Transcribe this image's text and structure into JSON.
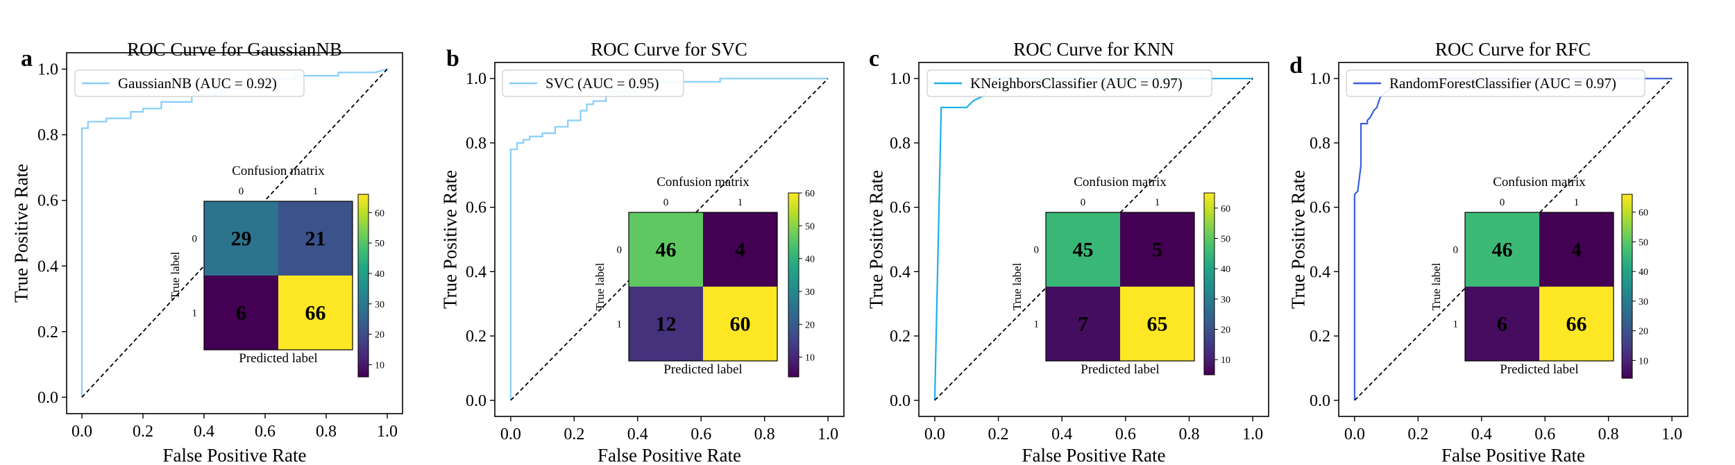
{
  "chart_data": [
    {
      "type": "line",
      "panel_letter": "a",
      "title": "ROC Curve for GaussianNB",
      "xlabel": "False Positive Rate",
      "ylabel": "True Positive Rate",
      "xlim": [
        -0.05,
        1.05
      ],
      "ylim": [
        -0.05,
        1.05
      ],
      "xticks": [
        "0.0",
        "0.2",
        "0.4",
        "0.6",
        "0.8",
        "1.0"
      ],
      "yticks": [
        "0.0",
        "0.2",
        "0.4",
        "0.6",
        "0.8",
        "1.0"
      ],
      "legend_loc": "upper left",
      "series": [
        {
          "name": "GaussianNB (AUC = 0.92)",
          "color": "#87cefa",
          "x": [
            0.0,
            0.0,
            0.02,
            0.02,
            0.08,
            0.08,
            0.16,
            0.16,
            0.2,
            0.2,
            0.26,
            0.26,
            0.36,
            0.36,
            0.46,
            0.46,
            0.56,
            0.56,
            0.6,
            0.6,
            0.7,
            0.7,
            0.84,
            0.84,
            0.96,
            1.0
          ],
          "y": [
            0.0,
            0.82,
            0.82,
            0.84,
            0.84,
            0.85,
            0.85,
            0.87,
            0.87,
            0.88,
            0.88,
            0.9,
            0.9,
            0.92,
            0.92,
            0.94,
            0.94,
            0.96,
            0.96,
            0.97,
            0.97,
            0.98,
            0.98,
            0.99,
            0.99,
            1.0
          ]
        },
        {
          "name": "",
          "style": "dashed",
          "color": "#000000",
          "x": [
            0,
            1
          ],
          "y": [
            0,
            1
          ]
        }
      ],
      "inset": {
        "title": "Confusion matrix",
        "xlabel": "Predicted label",
        "ylabel": "True label",
        "tick_labels": [
          "0",
          "1"
        ],
        "matrix": [
          [
            29,
            21
          ],
          [
            6,
            66
          ]
        ],
        "colorbar_ticks": [
          10,
          20,
          30,
          40,
          50,
          60
        ],
        "colorbar_range": [
          6,
          66
        ]
      }
    },
    {
      "type": "line",
      "panel_letter": "b",
      "title": "ROC Curve for SVC",
      "xlabel": "False Positive Rate",
      "ylabel": "True Positive Rate",
      "xlim": [
        -0.05,
        1.05
      ],
      "ylim": [
        -0.05,
        1.05
      ],
      "xticks": [
        "0.0",
        "0.2",
        "0.4",
        "0.6",
        "0.8",
        "1.0"
      ],
      "yticks": [
        "0.0",
        "0.2",
        "0.4",
        "0.6",
        "0.8",
        "1.0"
      ],
      "legend_loc": "upper left",
      "series": [
        {
          "name": "SVC (AUC = 0.95)",
          "color": "#87cefa",
          "x": [
            0.0,
            0.0,
            0.02,
            0.02,
            0.04,
            0.04,
            0.06,
            0.06,
            0.1,
            0.1,
            0.14,
            0.14,
            0.18,
            0.18,
            0.22,
            0.22,
            0.24,
            0.24,
            0.26,
            0.26,
            0.3,
            0.3,
            0.4,
            0.4,
            0.66,
            0.66,
            1.0
          ],
          "y": [
            0.0,
            0.78,
            0.78,
            0.8,
            0.8,
            0.81,
            0.81,
            0.82,
            0.82,
            0.83,
            0.83,
            0.85,
            0.85,
            0.87,
            0.87,
            0.9,
            0.9,
            0.92,
            0.92,
            0.93,
            0.93,
            0.96,
            0.96,
            0.99,
            0.99,
            1.0,
            1.0
          ]
        },
        {
          "name": "",
          "style": "dashed",
          "color": "#000000",
          "x": [
            0,
            1
          ],
          "y": [
            0,
            1
          ]
        }
      ],
      "inset": {
        "title": "Confusion matrix",
        "xlabel": "Predicted label",
        "ylabel": "True label",
        "tick_labels": [
          "0",
          "1"
        ],
        "matrix": [
          [
            46,
            4
          ],
          [
            12,
            60
          ]
        ],
        "colorbar_ticks": [
          10,
          20,
          30,
          40,
          50,
          60
        ],
        "colorbar_range": [
          4,
          60
        ]
      }
    },
    {
      "type": "line",
      "panel_letter": "c",
      "title": "ROC Curve for KNN",
      "xlabel": "False Positive Rate",
      "ylabel": "True Positive Rate",
      "xlim": [
        -0.05,
        1.05
      ],
      "ylim": [
        -0.05,
        1.05
      ],
      "xticks": [
        "0.0",
        "0.2",
        "0.4",
        "0.6",
        "0.8",
        "1.0"
      ],
      "yticks": [
        "0.0",
        "0.2",
        "0.4",
        "0.6",
        "0.8",
        "1.0"
      ],
      "legend_loc": "upper left",
      "series": [
        {
          "name": "KNeighborsClassifier (AUC = 0.97)",
          "color": "#1ab0e8",
          "x": [
            0.0,
            0.02,
            0.02,
            0.1,
            0.12,
            0.16,
            0.16,
            1.0
          ],
          "y": [
            0.0,
            0.9,
            0.91,
            0.91,
            0.93,
            0.95,
            1.0,
            1.0
          ]
        },
        {
          "name": "",
          "style": "dashed",
          "color": "#000000",
          "x": [
            0,
            1
          ],
          "y": [
            0,
            1
          ]
        }
      ],
      "inset": {
        "title": "Confusion matrix",
        "xlabel": "Predicted label",
        "ylabel": "True label",
        "tick_labels": [
          "0",
          "1"
        ],
        "matrix": [
          [
            45,
            5
          ],
          [
            7,
            65
          ]
        ],
        "colorbar_ticks": [
          10,
          20,
          30,
          40,
          50,
          60
        ],
        "colorbar_range": [
          5,
          65
        ]
      }
    },
    {
      "type": "line",
      "panel_letter": "d",
      "title": "ROC Curve for RFC",
      "xlabel": "False Positive Rate",
      "ylabel": "True Positive Rate",
      "xlim": [
        -0.05,
        1.05
      ],
      "ylim": [
        -0.05,
        1.05
      ],
      "xticks": [
        "0.0",
        "0.2",
        "0.4",
        "0.6",
        "0.8",
        "1.0"
      ],
      "yticks": [
        "0.0",
        "0.2",
        "0.4",
        "0.6",
        "0.8",
        "1.0"
      ],
      "legend_loc": "upper left",
      "series": [
        {
          "name": "RandomForestClassifier (AUC = 0.97)",
          "color": "#3a5fd9",
          "x": [
            0.0,
            0.0,
            0.01,
            0.02,
            0.02,
            0.04,
            0.04,
            0.05,
            0.06,
            0.07,
            0.08,
            0.09,
            0.1,
            0.14,
            0.2,
            0.96,
            1.0
          ],
          "y": [
            0.0,
            0.64,
            0.65,
            0.73,
            0.86,
            0.86,
            0.87,
            0.88,
            0.9,
            0.91,
            0.94,
            0.95,
            0.96,
            0.98,
            1.0,
            1.0,
            1.0
          ]
        },
        {
          "name": "",
          "style": "dashed",
          "color": "#000000",
          "x": [
            0,
            1
          ],
          "y": [
            0,
            1
          ]
        }
      ],
      "inset": {
        "title": "Confusion matrix",
        "xlabel": "Predicted label",
        "ylabel": "True label",
        "tick_labels": [
          "0",
          "1"
        ],
        "matrix": [
          [
            46,
            4
          ],
          [
            6,
            66
          ]
        ],
        "colorbar_ticks": [
          10,
          20,
          30,
          40,
          50,
          60
        ],
        "colorbar_range": [
          4,
          66
        ]
      }
    }
  ]
}
